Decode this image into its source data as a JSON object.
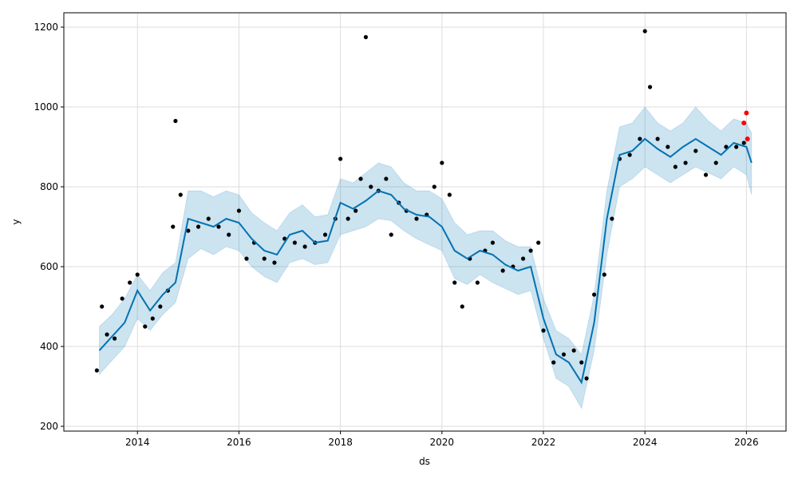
{
  "chart_data": {
    "type": "scatter",
    "title": "",
    "xlabel": "ds",
    "ylabel": "y",
    "xlim": [
      2012.55,
      2026.78
    ],
    "ylim": [
      188,
      1236
    ],
    "grid": true,
    "x_ticks": [
      2014,
      2016,
      2018,
      2020,
      2022,
      2024,
      2026
    ],
    "x_tick_labels": [
      "2014",
      "2016",
      "2018",
      "2020",
      "2022",
      "2024",
      "2026"
    ],
    "y_ticks": [
      200,
      400,
      600,
      800,
      1000,
      1200
    ],
    "y_tick_labels": [
      "200",
      "400",
      "600",
      "800",
      "1000",
      "1200"
    ],
    "colors": {
      "actual": "#000000",
      "forecast": "#0072B2",
      "interval": "#0072B2",
      "recent": "#ff0000",
      "grid": "#dddddd",
      "frame": "#000000"
    },
    "series": [
      {
        "kind": "interval",
        "x": [
          2013.25,
          2013.5,
          2013.75,
          2014.0,
          2014.25,
          2014.5,
          2014.75,
          2015.0,
          2015.25,
          2015.5,
          2015.75,
          2016.0,
          2016.25,
          2016.5,
          2016.75,
          2017.0,
          2017.25,
          2017.5,
          2017.75,
          2018.0,
          2018.25,
          2018.5,
          2018.75,
          2019.0,
          2019.25,
          2019.5,
          2019.75,
          2020.0,
          2020.25,
          2020.5,
          2020.75,
          2021.0,
          2021.25,
          2021.5,
          2021.75,
          2022.0,
          2022.25,
          2022.5,
          2022.75,
          2023.0,
          2023.25,
          2023.5,
          2023.75,
          2024.0,
          2024.25,
          2024.5,
          2024.75,
          2025.0,
          2025.25,
          2025.5,
          2025.75,
          2026.0,
          2026.1
        ],
        "lower": [
          330,
          365,
          400,
          470,
          440,
          480,
          510,
          620,
          645,
          630,
          650,
          640,
          600,
          575,
          560,
          610,
          620,
          605,
          610,
          680,
          690,
          700,
          720,
          715,
          690,
          670,
          655,
          640,
          570,
          555,
          580,
          560,
          545,
          530,
          540,
          420,
          320,
          300,
          245,
          390,
          630,
          800,
          820,
          850,
          830,
          810,
          830,
          850,
          835,
          820,
          850,
          830,
          780
        ],
        "upper": [
          450,
          480,
          520,
          580,
          540,
          585,
          610,
          790,
          790,
          775,
          790,
          780,
          735,
          710,
          690,
          735,
          755,
          725,
          730,
          820,
          810,
          835,
          860,
          850,
          810,
          790,
          790,
          770,
          710,
          680,
          690,
          690,
          665,
          650,
          650,
          520,
          440,
          420,
          380,
          530,
          790,
          950,
          960,
          1000,
          960,
          940,
          960,
          1000,
          965,
          940,
          970,
          960,
          935
        ]
      },
      {
        "kind": "forecast_line",
        "x": [
          2013.25,
          2013.5,
          2013.75,
          2014.0,
          2014.25,
          2014.5,
          2014.75,
          2015.0,
          2015.25,
          2015.5,
          2015.75,
          2016.0,
          2016.25,
          2016.5,
          2016.75,
          2017.0,
          2017.25,
          2017.5,
          2017.75,
          2018.0,
          2018.25,
          2018.5,
          2018.75,
          2019.0,
          2019.25,
          2019.5,
          2019.75,
          2020.0,
          2020.25,
          2020.5,
          2020.75,
          2021.0,
          2021.25,
          2021.5,
          2021.75,
          2022.0,
          2022.25,
          2022.5,
          2022.75,
          2023.0,
          2023.25,
          2023.5,
          2023.75,
          2024.0,
          2024.25,
          2024.5,
          2024.75,
          2025.0,
          2025.25,
          2025.5,
          2025.75,
          2026.0,
          2026.1
        ],
        "y": [
          390,
          425,
          460,
          540,
          490,
          530,
          560,
          720,
          710,
          700,
          720,
          710,
          670,
          640,
          630,
          680,
          690,
          660,
          665,
          760,
          745,
          765,
          790,
          780,
          745,
          730,
          725,
          700,
          640,
          620,
          640,
          630,
          605,
          590,
          600,
          470,
          380,
          360,
          310,
          460,
          720,
          880,
          890,
          920,
          895,
          875,
          900,
          920,
          900,
          880,
          910,
          900,
          860
        ]
      },
      {
        "kind": "actual_points",
        "x": [
          2013.2,
          2013.3,
          2013.4,
          2013.55,
          2013.7,
          2013.85,
          2014.0,
          2014.15,
          2014.3,
          2014.45,
          2014.6,
          2014.7,
          2014.75,
          2014.85,
          2015.0,
          2015.2,
          2015.4,
          2015.6,
          2015.8,
          2016.0,
          2016.15,
          2016.3,
          2016.5,
          2016.7,
          2016.9,
          2017.1,
          2017.3,
          2017.5,
          2017.7,
          2017.9,
          2018.0,
          2018.15,
          2018.3,
          2018.4,
          2018.5,
          2018.6,
          2018.75,
          2018.9,
          2019.0,
          2019.15,
          2019.3,
          2019.5,
          2019.7,
          2019.85,
          2020.0,
          2020.15,
          2020.25,
          2020.4,
          2020.55,
          2020.7,
          2020.85,
          2021.0,
          2021.2,
          2021.4,
          2021.6,
          2021.75,
          2021.9,
          2022.0,
          2022.2,
          2022.4,
          2022.6,
          2022.75,
          2022.85,
          2023.0,
          2023.2,
          2023.35,
          2023.5,
          2023.7,
          2023.9,
          2024.0,
          2024.1,
          2024.25,
          2024.45,
          2024.6,
          2024.8,
          2025.0,
          2025.2,
          2025.4,
          2025.6,
          2025.8,
          2025.95
        ],
        "y": [
          340,
          500,
          430,
          420,
          520,
          560,
          580,
          450,
          470,
          500,
          540,
          700,
          965,
          780,
          690,
          700,
          720,
          700,
          680,
          740,
          620,
          660,
          620,
          610,
          670,
          660,
          650,
          660,
          680,
          720,
          870,
          720,
          740,
          820,
          1175,
          800,
          790,
          820,
          680,
          760,
          740,
          720,
          730,
          800,
          860,
          780,
          560,
          500,
          620,
          560,
          640,
          660,
          590,
          600,
          620,
          640,
          660,
          440,
          360,
          380,
          390,
          360,
          320,
          530,
          580,
          720,
          870,
          880,
          920,
          1190,
          1050,
          920,
          900,
          850,
          860,
          890,
          830,
          860,
          900,
          900,
          910
        ]
      },
      {
        "kind": "recent_points",
        "x": [
          2025.95,
          2026.0,
          2026.02
        ],
        "y": [
          960,
          985,
          920
        ]
      }
    ]
  }
}
